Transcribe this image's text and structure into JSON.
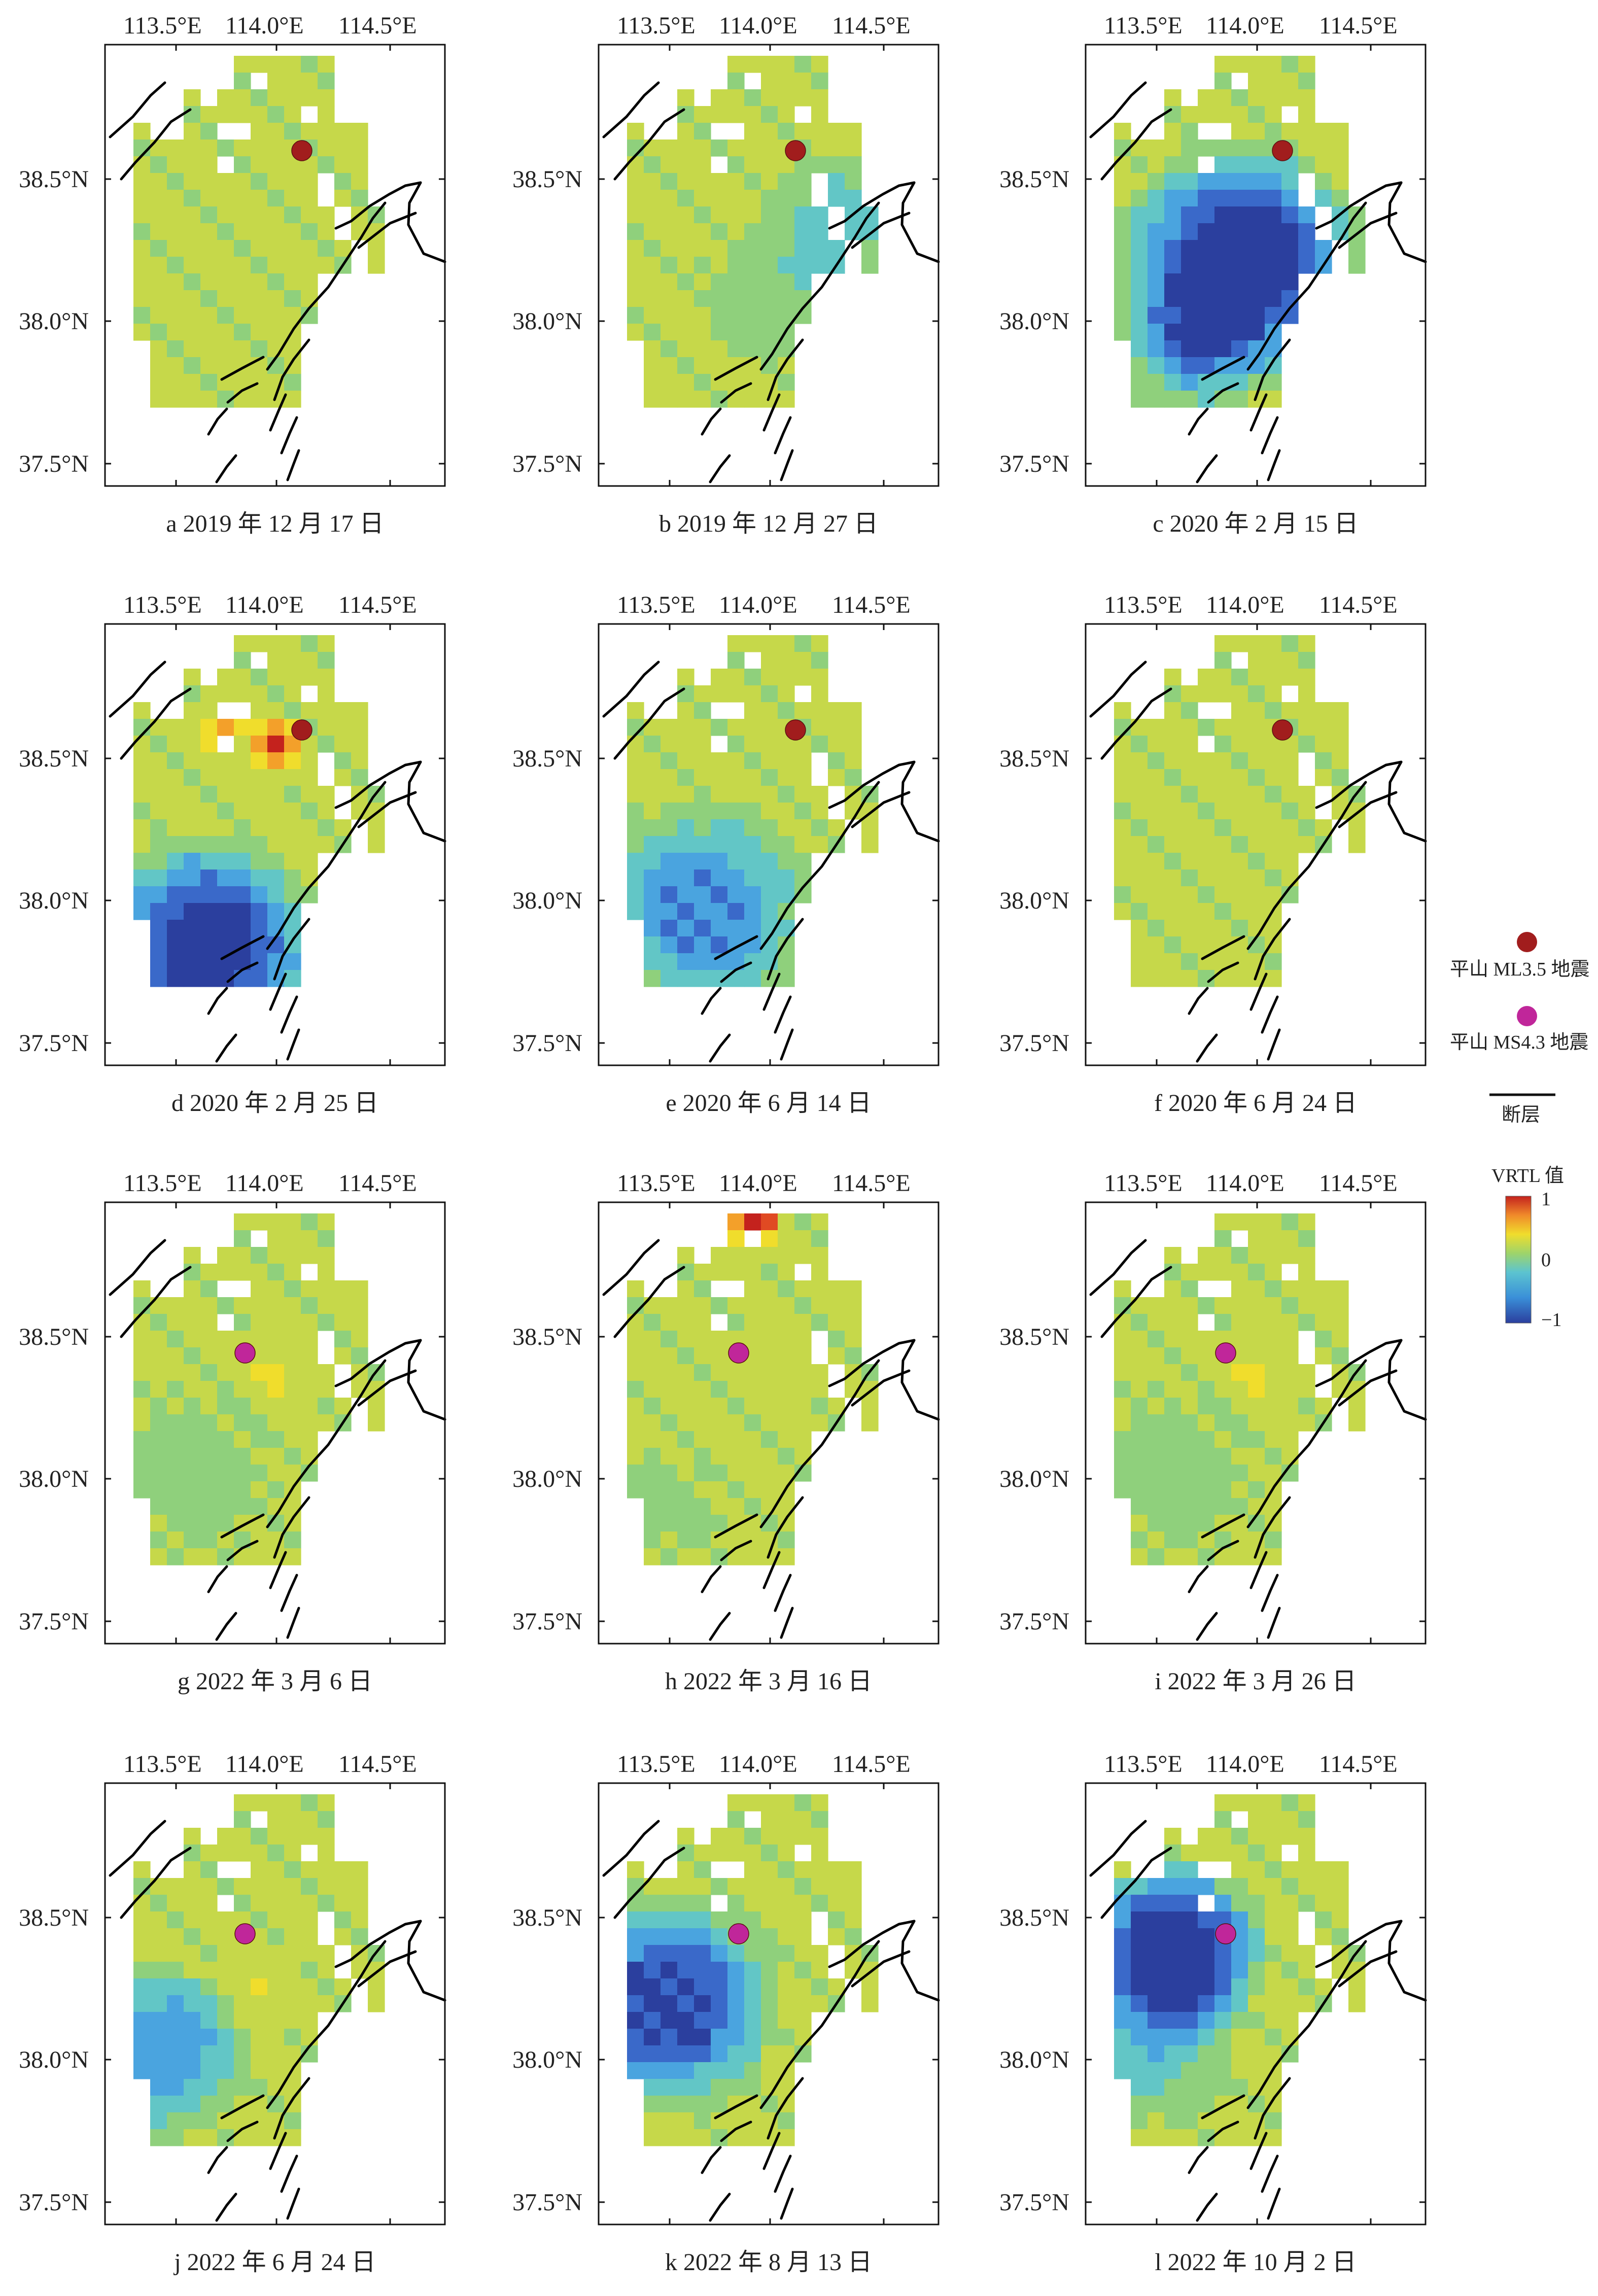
{
  "axes": {
    "lon_ticks": [
      "113.5°E",
      "114.0°E",
      "114.5°E"
    ],
    "lat_ticks": [
      "38.5°N",
      "38.0°N",
      "37.5°N"
    ]
  },
  "panels": [
    {
      "id": "a",
      "caption": "a 2019 年 12 月 17 日",
      "quake": "ml",
      "pattern": "flat"
    },
    {
      "id": "b",
      "caption": "b 2019 年 12 月 27 日",
      "quake": "ml",
      "pattern": "east-mild"
    },
    {
      "id": "c",
      "caption": "c 2020 年 2 月 15 日",
      "quake": "ml",
      "pattern": "center-strong"
    },
    {
      "id": "d",
      "caption": "d 2020 年 2 月 25 日",
      "quake": "ml",
      "pattern": "south-strong"
    },
    {
      "id": "e",
      "caption": "e 2020 年 6 月 14 日",
      "quake": "ml",
      "pattern": "south-mild"
    },
    {
      "id": "f",
      "caption": "f 2020 年 6 月 24 日",
      "quake": "ml",
      "pattern": "flat"
    },
    {
      "id": "g",
      "caption": "g 2022 年 3 月 6 日",
      "quake": "ms",
      "pattern": "slight"
    },
    {
      "id": "h",
      "caption": "h 2022 年 3 月 16 日",
      "quake": "ms",
      "pattern": "north-hot"
    },
    {
      "id": "i",
      "caption": "i 2022 年 3 月 26 日",
      "quake": "ms",
      "pattern": "slight"
    },
    {
      "id": "j",
      "caption": "j 2022 年 6 月 24 日",
      "quake": "ms",
      "pattern": "west-mild"
    },
    {
      "id": "k",
      "caption": "k 2022 年 8 月 13 日",
      "quake": "ms",
      "pattern": "west-strong"
    },
    {
      "id": "l",
      "caption": "l 2022 年 10 月 2 日",
      "quake": "ms",
      "pattern": "nw-strong"
    }
  ],
  "legend": {
    "ml_quake_label": "平山 ML3.5 地震",
    "ms_quake_label": "平山 MS4.3 地震",
    "fault_label": "断层",
    "colorbar_title": "VRTL 值",
    "colorbar_ticks": [
      "1",
      "0",
      "−1"
    ],
    "ml_color": "#a11d1d",
    "ms_color": "#c0269a"
  },
  "colormap": [
    "#2b3f9e",
    "#3a69c9",
    "#4aa4df",
    "#62c6c6",
    "#8fd07c",
    "#c6d84a",
    "#f0dd2c",
    "#f3a02a",
    "#e04a23",
    "#c4221d"
  ]
}
